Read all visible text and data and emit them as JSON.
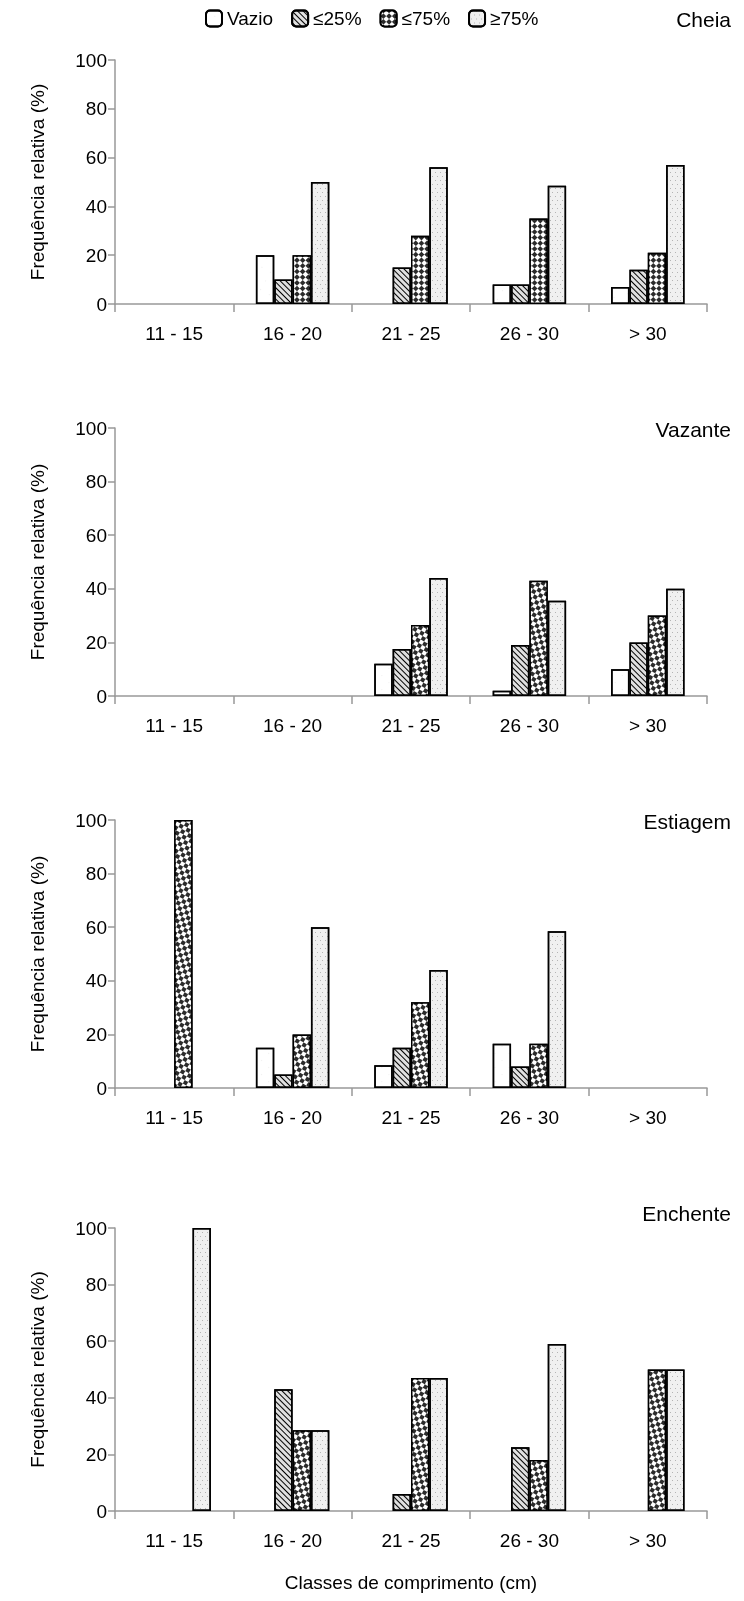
{
  "chart_data": [
    {
      "type": "bar",
      "title": "Cheia",
      "ylabel": "Frequência relativa (%)",
      "categories": [
        "11 - 15",
        "16 - 20",
        "21 - 25",
        "26 - 30",
        "> 30"
      ],
      "ylim": [
        0,
        100
      ],
      "yticks": [
        0,
        20,
        40,
        60,
        80,
        100
      ],
      "legend": "top",
      "series": [
        {
          "name": "Vazio",
          "color": "#ffffff",
          "values": [
            null,
            20,
            null,
            8,
            7
          ]
        },
        {
          "name": "≤25%",
          "color": "#e0e0e0",
          "values": [
            null,
            10,
            15,
            8,
            14
          ]
        },
        {
          "name": "≤75%",
          "color": "#2b2b2b",
          "values": [
            null,
            20,
            28,
            35,
            21
          ]
        },
        {
          "name": "≥75%",
          "color": "#f0f0f0",
          "values": [
            null,
            50,
            56,
            48.5,
            57
          ]
        }
      ]
    },
    {
      "type": "bar",
      "title": "Vazante",
      "ylabel": "Frequência relativa (%)",
      "categories": [
        "11 - 15",
        "16 - 20",
        "21 - 25",
        "26 - 30",
        "> 30"
      ],
      "ylim": [
        0,
        100
      ],
      "yticks": [
        0,
        20,
        40,
        60,
        80,
        100
      ],
      "series": [
        {
          "color": "#ffffff",
          "values": [
            null,
            null,
            12,
            2,
            10
          ]
        },
        {
          "color": "#e0e0e0",
          "values": [
            null,
            null,
            17.5,
            19,
            20
          ]
        },
        {
          "color": "#2b2b2b",
          "values": [
            null,
            null,
            26.5,
            43,
            30
          ]
        },
        {
          "color": "#f0f0f0",
          "values": [
            null,
            null,
            44,
            35.5,
            40
          ]
        }
      ]
    },
    {
      "type": "bar",
      "title": "Estiagem",
      "ylabel": "Frequência relativa (%)",
      "categories": [
        "11 - 15",
        "16 - 20",
        "21 - 25",
        "26 - 30",
        "> 30"
      ],
      "ylim": [
        0,
        100
      ],
      "yticks": [
        0,
        20,
        40,
        60,
        80,
        100
      ],
      "series": [
        {
          "color": "#ffffff",
          "values": [
            null,
            15,
            8.5,
            16.5,
            null
          ]
        },
        {
          "color": "#e0e0e0",
          "values": [
            null,
            5,
            15,
            8,
            null
          ]
        },
        {
          "color": "#2b2b2b",
          "values": [
            100,
            20,
            32,
            16.5,
            null
          ]
        },
        {
          "color": "#f0f0f0",
          "values": [
            null,
            60,
            44,
            58.5,
            null
          ]
        }
      ]
    },
    {
      "type": "bar",
      "title": "Enchente",
      "ylabel": "Frequência relativa (%)",
      "xlabel": "Classes de comprimento (cm)",
      "categories": [
        "11 - 15",
        "16 - 20",
        "21 - 25",
        "26 - 30",
        "> 30"
      ],
      "ylim": [
        0,
        100
      ],
      "yticks": [
        0,
        20,
        40,
        60,
        80,
        100
      ],
      "series": [
        {
          "color": "#ffffff",
          "values": [
            null,
            null,
            null,
            null,
            null
          ]
        },
        {
          "color": "#e0e0e0",
          "values": [
            null,
            43,
            6,
            22.5,
            null
          ]
        },
        {
          "color": "#2b2b2b",
          "values": [
            null,
            28.5,
            47,
            18,
            50
          ]
        },
        {
          "color": "#f0f0f0",
          "values": [
            100,
            28.5,
            47,
            59,
            50
          ]
        }
      ]
    }
  ]
}
